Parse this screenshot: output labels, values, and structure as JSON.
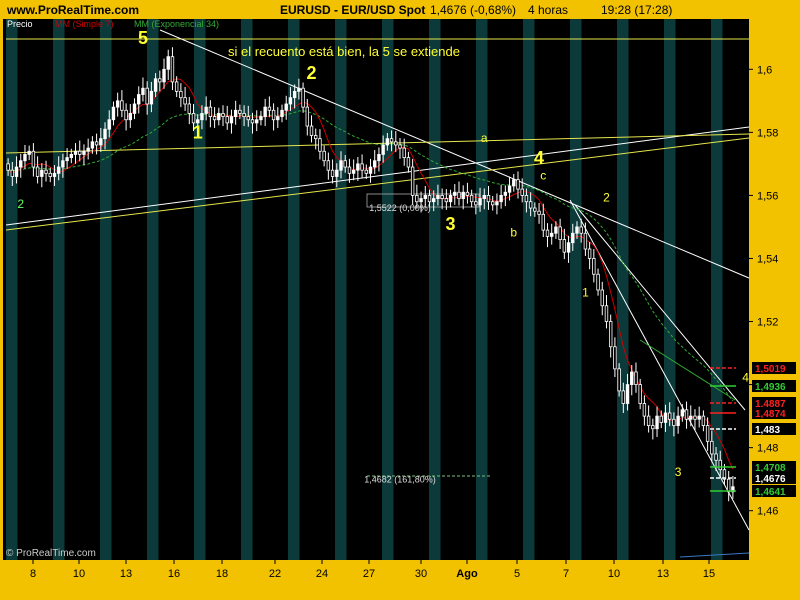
{
  "header": {
    "site": "www.ProRealTime.com",
    "title": "EURUSD - EUR/USD Spot",
    "price_info": "1,4676 (-0,68%)",
    "interval": "4 horas",
    "clock": "19:28 (17:28)"
  },
  "legend": {
    "price": "Precio",
    "ma_simple": "MM (Simple 7)",
    "ma_exp": "MM (Exponencial 34)"
  },
  "annotation_text": "si el recuento está bien, la 5 se extiende",
  "copyright": "© ProRealTime.com",
  "colors": {
    "background": "#000000",
    "band": "#0c3a3a",
    "frame": "#f2c200",
    "candle": "#ffffff",
    "ma_simple": "#cc0000",
    "ma_exp": "#33aa33",
    "wave_label": "#ffff33",
    "trendline_white": "#ffffff",
    "trendline_yellow": "#e6e64d"
  },
  "chart_data": {
    "type": "candlestick",
    "symbol": "EURUSD",
    "timeframe": "4 horas",
    "ylim": [
      1.445,
      1.615
    ],
    "y_ticks": [
      "1,6",
      "1,58",
      "1,56",
      "1,54",
      "1,52",
      "1,5",
      "1,48",
      "1,46"
    ],
    "x_ticks": [
      "8",
      "10",
      "13",
      "16",
      "18",
      "22",
      "24",
      "27",
      "30",
      "Ago",
      "5",
      "7",
      "10",
      "13",
      "15"
    ],
    "close_series": [
      1.568,
      1.566,
      1.569,
      1.571,
      1.573,
      1.574,
      1.569,
      1.566,
      1.568,
      1.567,
      1.566,
      1.567,
      1.569,
      1.571,
      1.572,
      1.573,
      1.574,
      1.573,
      1.574,
      1.575,
      1.577,
      1.576,
      1.578,
      1.581,
      1.584,
      1.588,
      1.59,
      1.587,
      1.584,
      1.586,
      1.589,
      1.592,
      1.594,
      1.589,
      1.593,
      1.597,
      1.596,
      1.6,
      1.604,
      1.596,
      1.593,
      1.591,
      1.589,
      1.586,
      1.583,
      1.584,
      1.586,
      1.588,
      1.585,
      1.584,
      1.586,
      1.585,
      1.583,
      1.585,
      1.587,
      1.586,
      1.585,
      1.584,
      1.583,
      1.584,
      1.585,
      1.588,
      1.587,
      1.584,
      1.585,
      1.587,
      1.589,
      1.591,
      1.593,
      1.594,
      1.588,
      1.582,
      1.579,
      1.578,
      1.574,
      1.571,
      1.568,
      1.566,
      1.568,
      1.571,
      1.569,
      1.567,
      1.568,
      1.57,
      1.568,
      1.567,
      1.569,
      1.571,
      1.573,
      1.576,
      1.578,
      1.577,
      1.576,
      1.575,
      1.572,
      1.569,
      1.56,
      1.558,
      1.559,
      1.56,
      1.558,
      1.559,
      1.56,
      1.559,
      1.558,
      1.56,
      1.561,
      1.559,
      1.561,
      1.56,
      1.558,
      1.557,
      1.559,
      1.56,
      1.558,
      1.557,
      1.558,
      1.56,
      1.561,
      1.563,
      1.565,
      1.562,
      1.56,
      1.558,
      1.556,
      1.555,
      1.554,
      1.549,
      1.547,
      1.548,
      1.55,
      1.546,
      1.542,
      1.545,
      1.548,
      1.55,
      1.548,
      1.543,
      1.54,
      1.535,
      1.53,
      1.525,
      1.52,
      1.512,
      1.505,
      1.498,
      1.494,
      1.5,
      1.504,
      1.5,
      1.494,
      1.49,
      1.487,
      1.486,
      1.49,
      1.488,
      1.491,
      1.489,
      1.487,
      1.49,
      1.492,
      1.489,
      1.49,
      1.489,
      1.49,
      1.487,
      1.482,
      1.478,
      1.476,
      1.473,
      1.47,
      1.466,
      1.4676
    ],
    "series": [
      {
        "name": "MM (Simple 7)"
      },
      {
        "name": "MM (Exponencial 34)"
      }
    ],
    "price_labels": [
      "1,5019",
      "1,4936",
      "1,4887",
      "1,4874",
      "1,483",
      "1,4708",
      "1,4676",
      "1,4641"
    ],
    "annotations": [
      {
        "text": "5",
        "x": 32,
        "y": 1.608
      },
      {
        "text": "2",
        "x": 72,
        "y": 1.597
      },
      {
        "text": "1",
        "x": 45,
        "y": 1.578
      },
      {
        "text": "3",
        "x": 105,
        "y": 1.549
      },
      {
        "text": "4",
        "x": 126,
        "y": 1.57
      },
      {
        "text": "2",
        "x": 3,
        "y": 1.556
      },
      {
        "text": "1",
        "x": 137,
        "y": 1.528
      },
      {
        "text": "2",
        "x": 142,
        "y": 1.558
      },
      {
        "text": "3",
        "x": 159,
        "y": 1.471
      },
      {
        "text": "4",
        "x": 175,
        "y": 1.501
      },
      {
        "text": "a",
        "x": 113,
        "y": 1.577
      },
      {
        "text": "b",
        "x": 120,
        "y": 1.547
      },
      {
        "text": "c",
        "x": 127,
        "y": 1.565
      },
      {
        "text": "1,5522 (0,00%)",
        "x": 93,
        "y": 1.555
      },
      {
        "text": "1,4682 (161,80%)",
        "x": 93,
        "y": 1.469
      }
    ]
  }
}
